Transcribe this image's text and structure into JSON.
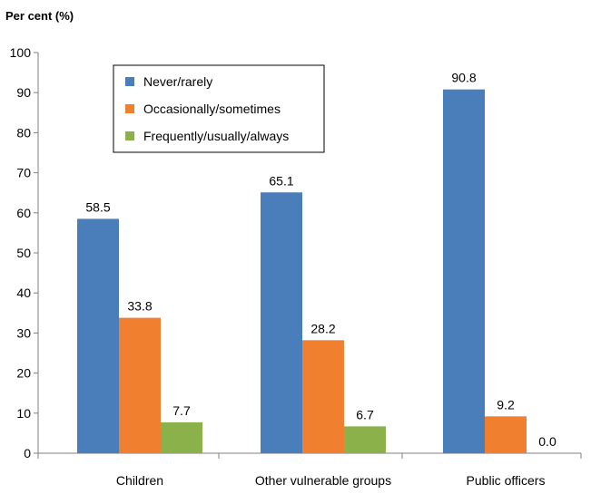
{
  "chart_data": {
    "type": "bar",
    "ylabel": "Per cent (%)",
    "ylim": [
      0,
      100
    ],
    "yticks": [
      0,
      10,
      20,
      30,
      40,
      50,
      60,
      70,
      80,
      90,
      100
    ],
    "categories": [
      "Children",
      "Other vulnerable groups",
      "Public officers"
    ],
    "series": [
      {
        "name": "Never/rarely",
        "color": "#4a7ebb",
        "values": [
          58.5,
          65.1,
          90.8
        ]
      },
      {
        "name": "Occasionally/sometimes",
        "color": "#f07f2f",
        "values": [
          33.8,
          28.2,
          9.2
        ]
      },
      {
        "name": "Frequently/usually/always",
        "color": "#8ab14a",
        "values": [
          7.7,
          6.7,
          0.0
        ]
      }
    ],
    "data_labels": [
      [
        "58.5",
        "65.1",
        "90.8"
      ],
      [
        "33.8",
        "28.2",
        "9.2"
      ],
      [
        "7.7",
        "6.7",
        "0.0"
      ]
    ],
    "grid": false,
    "legend_position": "top-left"
  }
}
